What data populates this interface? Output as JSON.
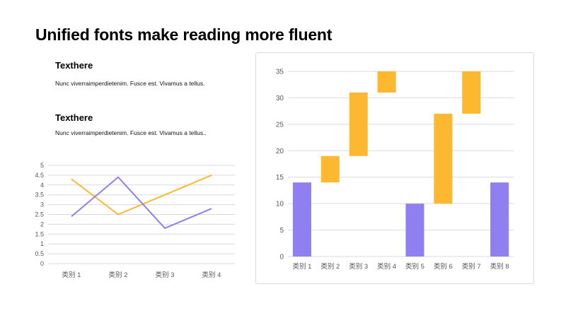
{
  "page": {
    "title": "Unified fonts make reading more fluent",
    "blocks": [
      {
        "heading": "Texthere",
        "body": "Nunc viverraimperdietenim. Fusce est. Vivamus a tellus."
      },
      {
        "heading": "Texthere",
        "body": "Nunc viverraimperdietenim. Fusce est. Vivamus a tellus.."
      }
    ]
  },
  "colors": {
    "purple": "#8f7ff0",
    "orange": "#fbb830",
    "grid": "#d9d9d9",
    "axis_text": "#595959"
  },
  "chart_data": [
    {
      "type": "line",
      "categories": [
        "类别 1",
        "类别 2",
        "类别 3",
        "类别 4"
      ],
      "series": [
        {
          "color": "#fbb830",
          "values": [
            4.3,
            2.5,
            3.5,
            4.5
          ]
        },
        {
          "color": "#8f7ff0",
          "values": [
            2.4,
            4.4,
            1.8,
            2.8
          ]
        }
      ],
      "ylim": [
        0,
        5
      ],
      "yticks": [
        "0",
        "0.5",
        "1",
        "1.5",
        "2",
        "2.5",
        "3",
        "3.5",
        "4",
        "4.5",
        "5"
      ],
      "grid": true,
      "legend": "none"
    },
    {
      "type": "bar",
      "subtype": "waterfall",
      "categories": [
        "类别 1",
        "类别 2",
        "类别 3",
        "类别 4",
        "类别 5",
        "类别 6",
        "类别 7",
        "类别 8"
      ],
      "bars": [
        {
          "start": 0,
          "end": 14,
          "kind": "total",
          "color": "#8f7ff0"
        },
        {
          "start": 14,
          "end": 19,
          "kind": "change",
          "color": "#fbb830"
        },
        {
          "start": 19,
          "end": 31,
          "kind": "change",
          "color": "#fbb830"
        },
        {
          "start": 31,
          "end": 35,
          "kind": "change",
          "color": "#fbb830"
        },
        {
          "start": 0,
          "end": 10,
          "kind": "total",
          "color": "#8f7ff0"
        },
        {
          "start": 10,
          "end": 27,
          "kind": "change",
          "color": "#fbb830"
        },
        {
          "start": 27,
          "end": 35,
          "kind": "change",
          "color": "#fbb830"
        },
        {
          "start": 0,
          "end": 14,
          "kind": "total",
          "color": "#8f7ff0"
        }
      ],
      "ylim": [
        0,
        35
      ],
      "yticks": [
        "0",
        "5",
        "10",
        "15",
        "20",
        "25",
        "30",
        "35"
      ],
      "grid": true,
      "legend": "none"
    }
  ]
}
